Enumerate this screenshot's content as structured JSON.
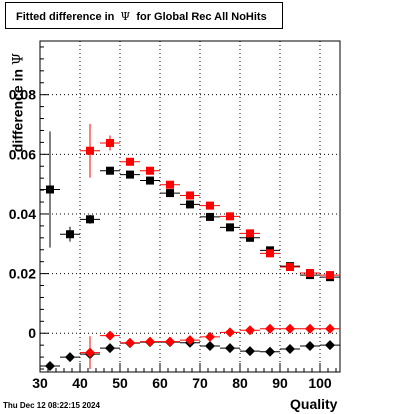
{
  "title": {
    "prefix": "Fitted difference in",
    "symbol": "Ψ",
    "suffix": "for Global Rec All NoHits"
  },
  "footer": "Thu Dec 12 08:22:15 2024",
  "colors": {
    "red": "#ff0000",
    "black": "#000000"
  },
  "chart_data": {
    "type": "scatter",
    "xlabel": "Quality",
    "ylabel_prefix": "difference in",
    "ylabel_symbol": "Ψ",
    "xlim": [
      30,
      105
    ],
    "ylim": [
      -0.013,
      0.098
    ],
    "xticks": [
      30,
      40,
      50,
      60,
      70,
      80,
      90,
      100
    ],
    "yticks": [
      0,
      0.02,
      0.04,
      0.06,
      0.08
    ],
    "ytick_labels": [
      "0",
      "0.02",
      "0.04",
      "0.06",
      "0.08"
    ],
    "grid": true,
    "series": [
      {
        "marker": "square",
        "color": "#000000",
        "x": [
          32.5,
          37.5,
          42.5,
          47.5,
          52.5,
          57.5,
          62.5,
          67.5,
          72.5,
          77.5,
          82.5,
          87.5,
          92.5,
          97.5,
          102.5
        ],
        "y": [
          0.0482,
          0.0332,
          0.0382,
          0.0545,
          0.0532,
          0.0512,
          0.047,
          0.0432,
          0.039,
          0.0355,
          0.032,
          0.0278,
          0.0225,
          0.0195,
          0.0188
        ],
        "yerr": [
          0.0195,
          0.0025,
          0.0015,
          0.0008,
          0.0006,
          0.0006,
          0.0006,
          0.0006,
          0.0006,
          0.0006,
          0.0006,
          0.0006,
          0.0006,
          0.0006,
          0.0006
        ]
      },
      {
        "marker": "square",
        "color": "#ff0000",
        "x": [
          42.5,
          47.5,
          52.5,
          57.5,
          62.5,
          67.5,
          72.5,
          77.5,
          82.5,
          87.5,
          92.5,
          97.5,
          102.5
        ],
        "y": [
          0.0612,
          0.0638,
          0.0575,
          0.0545,
          0.0498,
          0.0462,
          0.0428,
          0.0392,
          0.0335,
          0.0268,
          0.0222,
          0.0202,
          0.0195
        ],
        "yerr": [
          0.009,
          0.0025,
          0.0008,
          0.0007,
          0.0007,
          0.0006,
          0.0006,
          0.0006,
          0.0006,
          0.0006,
          0.0006,
          0.0006,
          0.0006
        ]
      },
      {
        "marker": "diamond",
        "color": "#000000",
        "x": [
          32.5,
          37.5,
          42.5,
          47.5,
          52.5,
          57.5,
          62.5,
          67.5,
          72.5,
          77.5,
          82.5,
          87.5,
          92.5,
          97.5,
          102.5
        ],
        "y": [
          -0.011,
          -0.008,
          -0.007,
          -0.005,
          -0.0033,
          -0.003,
          -0.003,
          -0.0032,
          -0.0043,
          -0.005,
          -0.006,
          -0.0062,
          -0.0053,
          -0.0043,
          -0.004
        ],
        "yerr": [
          0.0008,
          0.0012,
          0.001,
          0.0005,
          0.0003,
          0.0003,
          0.0003,
          0.0003,
          0.0003,
          0.0003,
          0.0003,
          0.0003,
          0.0003,
          0.0003,
          0.0003
        ]
      },
      {
        "marker": "diamond",
        "color": "#ff0000",
        "x": [
          42.5,
          47.5,
          52.5,
          57.5,
          62.5,
          67.5,
          72.5,
          77.5,
          82.5,
          87.5,
          92.5,
          97.5,
          102.5
        ],
        "y": [
          -0.0065,
          -0.0008,
          -0.0032,
          -0.0028,
          -0.0028,
          -0.0023,
          -0.0012,
          0.0003,
          0.001,
          0.0015,
          0.0015,
          0.0015,
          0.0015
        ],
        "yerr": [
          0.0055,
          0.0008,
          0.0003,
          0.0003,
          0.0003,
          0.0003,
          0.0003,
          0.0003,
          0.0003,
          0.0003,
          0.0003,
          0.0003,
          0.0003
        ]
      }
    ]
  }
}
